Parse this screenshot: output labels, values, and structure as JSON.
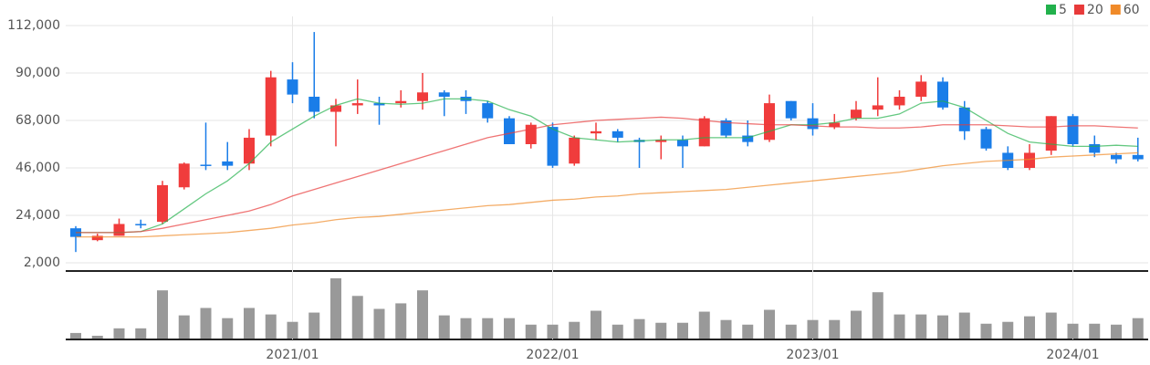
{
  "chart_data": {
    "type": "candlestick",
    "categories": [
      null,
      null,
      null,
      null,
      null,
      null,
      null,
      null,
      null,
      null,
      "2021/01",
      null,
      null,
      null,
      null,
      null,
      null,
      null,
      null,
      null,
      null,
      null,
      "2022/01",
      null,
      null,
      null,
      null,
      null,
      null,
      null,
      null,
      null,
      null,
      null,
      "2023/01",
      null,
      null,
      null,
      null,
      null,
      null,
      null,
      null,
      null,
      null,
      null,
      "2024/01",
      null,
      null,
      null
    ],
    "open": [
      18000,
      12500,
      14500,
      20000,
      21000,
      37000,
      47500,
      49000,
      48000,
      61000,
      87000,
      79000,
      72000,
      75000,
      76000,
      76000,
      77000,
      81000,
      79000,
      76000,
      69000,
      57000,
      65000,
      48000,
      62000,
      63000,
      59000,
      58000,
      59000,
      56000,
      68000,
      61000,
      59000,
      77000,
      69000,
      65000,
      69000,
      73000,
      75000,
      79000,
      86000,
      74000,
      64000,
      53000,
      46000,
      54000,
      70000,
      57000,
      52000,
      52000
    ],
    "high": [
      19000,
      15500,
      22500,
      22000,
      40000,
      48500,
      67000,
      58000,
      64000,
      91000,
      95000,
      109000,
      78000,
      87000,
      79000,
      82000,
      90000,
      82000,
      82000,
      77000,
      70000,
      67000,
      67000,
      61000,
      67000,
      64000,
      60000,
      61000,
      61000,
      70000,
      69000,
      68000,
      80000,
      77000,
      76000,
      71000,
      77000,
      88000,
      82000,
      89000,
      88000,
      77000,
      65000,
      56000,
      57000,
      70000,
      71000,
      61000,
      53000,
      60000
    ],
    "low": [
      7000,
      12000,
      14500,
      18000,
      20000,
      36000,
      45000,
      45000,
      45000,
      56000,
      76000,
      69000,
      56000,
      71000,
      66000,
      74000,
      73000,
      70000,
      71000,
      67000,
      57000,
      55000,
      46000,
      47000,
      59000,
      58000,
      46000,
      50000,
      46000,
      56000,
      60000,
      56000,
      58000,
      68000,
      61000,
      64000,
      68000,
      70000,
      73000,
      77000,
      73000,
      59000,
      54000,
      45000,
      45000,
      52000,
      56000,
      51000,
      48000,
      49000
    ],
    "close": [
      14000,
      14500,
      20000,
      19500,
      38000,
      48000,
      47000,
      47000,
      60000,
      88000,
      80000,
      72000,
      75000,
      76000,
      75000,
      77000,
      81000,
      79000,
      77000,
      69000,
      57000,
      66000,
      47000,
      60000,
      63000,
      60000,
      58000,
      59000,
      56000,
      69000,
      61000,
      58000,
      76000,
      69000,
      64000,
      67000,
      73000,
      75000,
      79000,
      86000,
      74000,
      63000,
      55000,
      46000,
      53000,
      70000,
      57000,
      53000,
      50000,
      50000
    ],
    "up_color": "#f03c3c",
    "down_color": "#1a7de8",
    "series": [
      {
        "name": "5",
        "color": "#22b14c",
        "values": [
          16000,
          16000,
          16000,
          16500,
          20000,
          27000,
          34000,
          40000,
          48000,
          58000,
          64000,
          70000,
          75000,
          78000,
          76000,
          75500,
          76000,
          78000,
          78000,
          77000,
          73000,
          70000,
          64000,
          60000,
          59000,
          58000,
          58500,
          59000,
          59000,
          60000,
          60000,
          60000,
          63000,
          66000,
          66000,
          67000,
          69000,
          69000,
          71000,
          76000,
          77000,
          74000,
          68000,
          62000,
          58000,
          57000,
          56000,
          56000,
          56500,
          56000
        ]
      },
      {
        "name": "20",
        "color": "#e83a3a",
        "values": [
          16000,
          16000,
          16000,
          16500,
          18000,
          20000,
          22000,
          24000,
          26000,
          29000,
          33000,
          36000,
          39000,
          42000,
          45000,
          48000,
          51000,
          54000,
          57000,
          60000,
          62000,
          64000,
          66000,
          67000,
          68000,
          68500,
          69000,
          69500,
          69000,
          68000,
          67000,
          66500,
          66000,
          66000,
          65500,
          65000,
          65000,
          64500,
          64500,
          65000,
          66000,
          66000,
          66000,
          65500,
          65000,
          65000,
          65500,
          65500,
          65000,
          64500
        ]
      },
      {
        "name": "60",
        "color": "#f08a28",
        "values": [
          14000,
          14000,
          14000,
          14000,
          14500,
          15000,
          15500,
          16000,
          17000,
          18000,
          19500,
          20500,
          22000,
          23000,
          23500,
          24500,
          25500,
          26500,
          27500,
          28500,
          29000,
          30000,
          31000,
          31500,
          32500,
          33000,
          34000,
          34500,
          35000,
          35500,
          36000,
          37000,
          38000,
          39000,
          40000,
          41000,
          42000,
          43000,
          44000,
          45500,
          47000,
          48000,
          49000,
          49500,
          50000,
          51000,
          51500,
          52000,
          52500,
          53000
        ]
      }
    ],
    "volume": {
      "color": "#999999",
      "values": [
        6,
        3,
        11,
        11,
        52,
        25,
        33,
        22,
        33,
        26,
        18,
        28,
        65,
        46,
        32,
        38,
        52,
        25,
        22,
        22,
        22,
        15,
        15,
        18,
        30,
        15,
        21,
        17,
        17,
        29,
        20,
        15,
        31,
        15,
        20,
        20,
        30,
        50,
        26,
        26,
        25,
        28,
        16,
        18,
        24,
        28,
        16,
        16,
        15,
        22
      ]
    },
    "ylim": [
      2000,
      112000
    ],
    "yticks": [
      {
        "value": 2000,
        "label": "2,000"
      },
      {
        "value": 24000,
        "label": "24,000"
      },
      {
        "value": 46000,
        "label": "46,000"
      },
      {
        "value": 68000,
        "label": "68,000"
      },
      {
        "value": 90000,
        "label": "90,000"
      },
      {
        "value": 112000,
        "label": "112,000"
      }
    ],
    "grid": true
  }
}
